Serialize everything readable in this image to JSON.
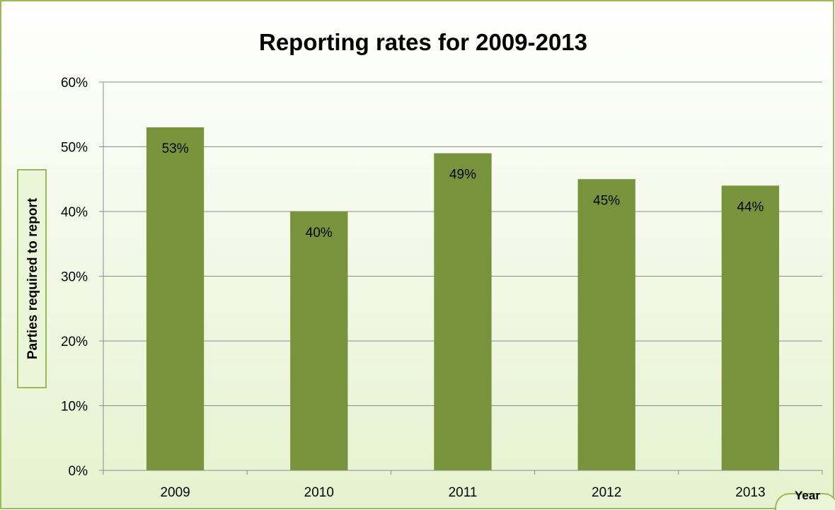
{
  "colors": {
    "bar": "#77933c",
    "frame_border": "#9bbb59",
    "background_top": "#ffffff",
    "background_bottom": "#e6f2cf",
    "gridline": "#8c8c8c",
    "ylabel_box": "#ebf5d8",
    "xlabel_box": "#ebf5d8"
  },
  "chart_data": {
    "type": "bar",
    "title": "Reporting rates for 2009-2013",
    "xlabel": "Year",
    "ylabel": "Parties required to report",
    "categories": [
      "2009",
      "2010",
      "2011",
      "2012",
      "2013"
    ],
    "values": [
      53,
      40,
      49,
      45,
      44
    ],
    "data_labels": [
      "53%",
      "40%",
      "49%",
      "45%",
      "44%"
    ],
    "ylim": [
      0,
      60
    ],
    "yticks": [
      0,
      10,
      20,
      30,
      40,
      50,
      60
    ],
    "ytick_labels": [
      "0%",
      "10%",
      "20%",
      "30%",
      "40%",
      "50%",
      "60%"
    ],
    "grid": true,
    "legend": "none"
  }
}
